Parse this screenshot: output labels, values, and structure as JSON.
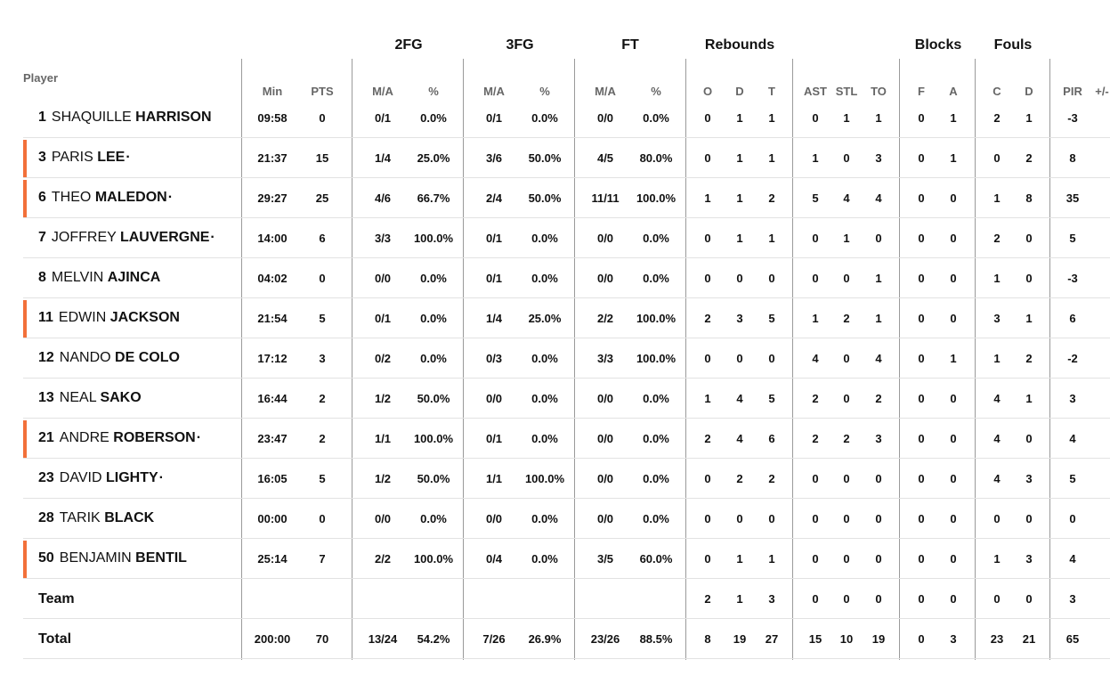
{
  "group_headers": {
    "fg2": "2FG",
    "fg3": "3FG",
    "ft": "FT",
    "rebounds": "Rebounds",
    "blocks": "Blocks",
    "fouls": "Fouls"
  },
  "col_headers": {
    "player": "Player",
    "min": "Min",
    "pts": "PTS",
    "fg2_ma": "M/A",
    "fg2_pct": "%",
    "fg3_ma": "M/A",
    "fg3_pct": "%",
    "ft_ma": "M/A",
    "ft_pct": "%",
    "reb_o": "O",
    "reb_d": "D",
    "reb_t": "T",
    "ast": "AST",
    "stl": "STL",
    "to": "TO",
    "blk_f": "F",
    "blk_a": "A",
    "foul_c": "C",
    "foul_d": "D",
    "pir": "PIR",
    "pm": "+/-"
  },
  "players": [
    {
      "number": "1",
      "first": "SHAQUILLE",
      "last": "HARRISON",
      "dot": "",
      "starter": false,
      "min": "09:58",
      "pts": "0",
      "fg2_ma": "0/1",
      "fg2_pct": "0.0%",
      "fg3_ma": "0/1",
      "fg3_pct": "0.0%",
      "ft_ma": "0/0",
      "ft_pct": "0.0%",
      "reb_o": "0",
      "reb_d": "1",
      "reb_t": "1",
      "ast": "0",
      "stl": "1",
      "to": "1",
      "blk_f": "0",
      "blk_a": "1",
      "foul_c": "2",
      "foul_d": "1",
      "pir": "-3"
    },
    {
      "number": "3",
      "first": "PARIS",
      "last": "LEE",
      "dot": "·",
      "starter": true,
      "min": "21:37",
      "pts": "15",
      "fg2_ma": "1/4",
      "fg2_pct": "25.0%",
      "fg3_ma": "3/6",
      "fg3_pct": "50.0%",
      "ft_ma": "4/5",
      "ft_pct": "80.0%",
      "reb_o": "0",
      "reb_d": "1",
      "reb_t": "1",
      "ast": "1",
      "stl": "0",
      "to": "3",
      "blk_f": "0",
      "blk_a": "1",
      "foul_c": "0",
      "foul_d": "2",
      "pir": "8"
    },
    {
      "number": "6",
      "first": "THEO",
      "last": "MALEDON",
      "dot": "·",
      "starter": true,
      "min": "29:27",
      "pts": "25",
      "fg2_ma": "4/6",
      "fg2_pct": "66.7%",
      "fg3_ma": "2/4",
      "fg3_pct": "50.0%",
      "ft_ma": "11/11",
      "ft_pct": "100.0%",
      "reb_o": "1",
      "reb_d": "1",
      "reb_t": "2",
      "ast": "5",
      "stl": "4",
      "to": "4",
      "blk_f": "0",
      "blk_a": "0",
      "foul_c": "1",
      "foul_d": "8",
      "pir": "35"
    },
    {
      "number": "7",
      "first": "JOFFREY",
      "last": "LAUVERGNE",
      "dot": "·",
      "starter": false,
      "min": "14:00",
      "pts": "6",
      "fg2_ma": "3/3",
      "fg2_pct": "100.0%",
      "fg3_ma": "0/1",
      "fg3_pct": "0.0%",
      "ft_ma": "0/0",
      "ft_pct": "0.0%",
      "reb_o": "0",
      "reb_d": "1",
      "reb_t": "1",
      "ast": "0",
      "stl": "1",
      "to": "0",
      "blk_f": "0",
      "blk_a": "0",
      "foul_c": "2",
      "foul_d": "0",
      "pir": "5"
    },
    {
      "number": "8",
      "first": "MELVIN",
      "last": "AJINCA",
      "dot": "",
      "starter": false,
      "min": "04:02",
      "pts": "0",
      "fg2_ma": "0/0",
      "fg2_pct": "0.0%",
      "fg3_ma": "0/1",
      "fg3_pct": "0.0%",
      "ft_ma": "0/0",
      "ft_pct": "0.0%",
      "reb_o": "0",
      "reb_d": "0",
      "reb_t": "0",
      "ast": "0",
      "stl": "0",
      "to": "1",
      "blk_f": "0",
      "blk_a": "0",
      "foul_c": "1",
      "foul_d": "0",
      "pir": "-3"
    },
    {
      "number": "11",
      "first": "EDWIN",
      "last": "JACKSON",
      "dot": "",
      "starter": true,
      "min": "21:54",
      "pts": "5",
      "fg2_ma": "0/1",
      "fg2_pct": "0.0%",
      "fg3_ma": "1/4",
      "fg3_pct": "25.0%",
      "ft_ma": "2/2",
      "ft_pct": "100.0%",
      "reb_o": "2",
      "reb_d": "3",
      "reb_t": "5",
      "ast": "1",
      "stl": "2",
      "to": "1",
      "blk_f": "0",
      "blk_a": "0",
      "foul_c": "3",
      "foul_d": "1",
      "pir": "6"
    },
    {
      "number": "12",
      "first": "NANDO",
      "last": "DE COLO",
      "dot": "",
      "starter": false,
      "min": "17:12",
      "pts": "3",
      "fg2_ma": "0/2",
      "fg2_pct": "0.0%",
      "fg3_ma": "0/3",
      "fg3_pct": "0.0%",
      "ft_ma": "3/3",
      "ft_pct": "100.0%",
      "reb_o": "0",
      "reb_d": "0",
      "reb_t": "0",
      "ast": "4",
      "stl": "0",
      "to": "4",
      "blk_f": "0",
      "blk_a": "1",
      "foul_c": "1",
      "foul_d": "2",
      "pir": "-2"
    },
    {
      "number": "13",
      "first": "NEAL",
      "last": "SAKO",
      "dot": "",
      "starter": false,
      "min": "16:44",
      "pts": "2",
      "fg2_ma": "1/2",
      "fg2_pct": "50.0%",
      "fg3_ma": "0/0",
      "fg3_pct": "0.0%",
      "ft_ma": "0/0",
      "ft_pct": "0.0%",
      "reb_o": "1",
      "reb_d": "4",
      "reb_t": "5",
      "ast": "2",
      "stl": "0",
      "to": "2",
      "blk_f": "0",
      "blk_a": "0",
      "foul_c": "4",
      "foul_d": "1",
      "pir": "3"
    },
    {
      "number": "21",
      "first": "ANDRE",
      "last": "ROBERSON",
      "dot": "·",
      "starter": true,
      "min": "23:47",
      "pts": "2",
      "fg2_ma": "1/1",
      "fg2_pct": "100.0%",
      "fg3_ma": "0/1",
      "fg3_pct": "0.0%",
      "ft_ma": "0/0",
      "ft_pct": "0.0%",
      "reb_o": "2",
      "reb_d": "4",
      "reb_t": "6",
      "ast": "2",
      "stl": "2",
      "to": "3",
      "blk_f": "0",
      "blk_a": "0",
      "foul_c": "4",
      "foul_d": "0",
      "pir": "4"
    },
    {
      "number": "23",
      "first": "DAVID",
      "last": "LIGHTY",
      "dot": "·",
      "starter": false,
      "min": "16:05",
      "pts": "5",
      "fg2_ma": "1/2",
      "fg2_pct": "50.0%",
      "fg3_ma": "1/1",
      "fg3_pct": "100.0%",
      "ft_ma": "0/0",
      "ft_pct": "0.0%",
      "reb_o": "0",
      "reb_d": "2",
      "reb_t": "2",
      "ast": "0",
      "stl": "0",
      "to": "0",
      "blk_f": "0",
      "blk_a": "0",
      "foul_c": "4",
      "foul_d": "3",
      "pir": "5"
    },
    {
      "number": "28",
      "first": "TARIK",
      "last": "BLACK",
      "dot": "",
      "starter": false,
      "min": "00:00",
      "pts": "0",
      "fg2_ma": "0/0",
      "fg2_pct": "0.0%",
      "fg3_ma": "0/0",
      "fg3_pct": "0.0%",
      "ft_ma": "0/0",
      "ft_pct": "0.0%",
      "reb_o": "0",
      "reb_d": "0",
      "reb_t": "0",
      "ast": "0",
      "stl": "0",
      "to": "0",
      "blk_f": "0",
      "blk_a": "0",
      "foul_c": "0",
      "foul_d": "0",
      "pir": "0"
    },
    {
      "number": "50",
      "first": "BENJAMIN",
      "last": "BENTIL",
      "dot": "",
      "starter": true,
      "min": "25:14",
      "pts": "7",
      "fg2_ma": "2/2",
      "fg2_pct": "100.0%",
      "fg3_ma": "0/4",
      "fg3_pct": "0.0%",
      "ft_ma": "3/5",
      "ft_pct": "60.0%",
      "reb_o": "0",
      "reb_d": "1",
      "reb_t": "1",
      "ast": "0",
      "stl": "0",
      "to": "0",
      "blk_f": "0",
      "blk_a": "0",
      "foul_c": "1",
      "foul_d": "3",
      "pir": "4"
    }
  ],
  "team_row": {
    "label": "Team",
    "reb_o": "2",
    "reb_d": "1",
    "reb_t": "3",
    "ast": "0",
    "stl": "0",
    "to": "0",
    "blk_f": "0",
    "blk_a": "0",
    "foul_c": "0",
    "foul_d": "0",
    "pir": "3"
  },
  "total_row": {
    "label": "Total",
    "min": "200:00",
    "pts": "70",
    "fg2_ma": "13/24",
    "fg2_pct": "54.2%",
    "fg3_ma": "7/26",
    "fg3_pct": "26.9%",
    "ft_ma": "23/26",
    "ft_pct": "88.5%",
    "reb_o": "8",
    "reb_d": "19",
    "reb_t": "27",
    "ast": "15",
    "stl": "10",
    "to": "19",
    "blk_f": "0",
    "blk_a": "3",
    "foul_c": "23",
    "foul_d": "21",
    "pir": "65"
  },
  "colors": {
    "starter_accent": "#f2703a",
    "divider": "#9a9a9a",
    "row_separator": "#e2e2e2",
    "header_text": "#666666"
  }
}
